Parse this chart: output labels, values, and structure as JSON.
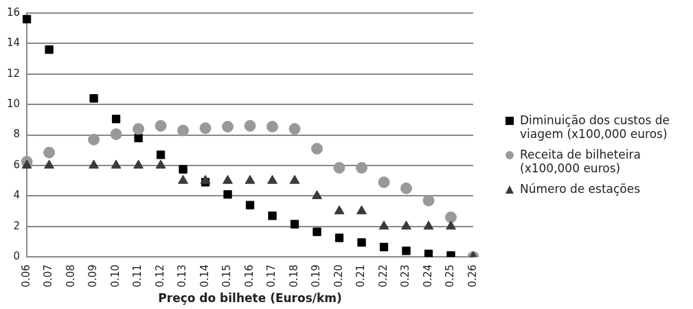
{
  "chart_data": {
    "type": "scatter",
    "xlabel": "Preço do bilhete (Euros/km)",
    "categories": [
      "0.06",
      "0.07",
      "0.08",
      "0.09",
      "0.10",
      "0.11",
      "0.12",
      "0.13",
      "0.14",
      "0.15",
      "0.16",
      "0.17",
      "0.18",
      "0.19",
      "0.20",
      "0.21",
      "0.22",
      "0.23",
      "0.24",
      "0.25",
      "0.26"
    ],
    "series": [
      {
        "name": "Diminuição dos custos de viagem (x100,000 euros)",
        "color": "#000000",
        "marker": "square",
        "values": [
          15.6,
          13.6,
          null,
          10.4,
          9.05,
          7.8,
          6.7,
          5.75,
          4.9,
          4.1,
          3.4,
          2.7,
          2.15,
          1.65,
          1.25,
          0.95,
          0.65,
          0.4,
          0.2,
          0.1,
          0
        ]
      },
      {
        "name": "Receita de bilheteira (x100,000 euros)",
        "color": "#999999",
        "marker": "circle",
        "values": [
          6.25,
          6.85,
          null,
          7.7,
          8.05,
          8.4,
          8.6,
          8.3,
          8.45,
          8.55,
          8.6,
          8.55,
          8.4,
          7.1,
          5.85,
          5.85,
          4.9,
          4.5,
          3.7,
          2.6,
          0
        ]
      },
      {
        "name": "Número de estações",
        "color": "#3a3a3a",
        "marker": "triangle",
        "values": [
          6,
          6,
          null,
          6,
          6,
          6,
          6,
          5,
          5,
          5,
          5,
          5,
          5,
          4,
          3,
          3,
          2,
          2,
          2,
          2,
          0
        ]
      }
    ],
    "ylim": [
      0,
      16
    ],
    "yticks": [
      0,
      2,
      4,
      6,
      8,
      10,
      12,
      14,
      16
    ],
    "grid": "y",
    "legend": "right"
  }
}
